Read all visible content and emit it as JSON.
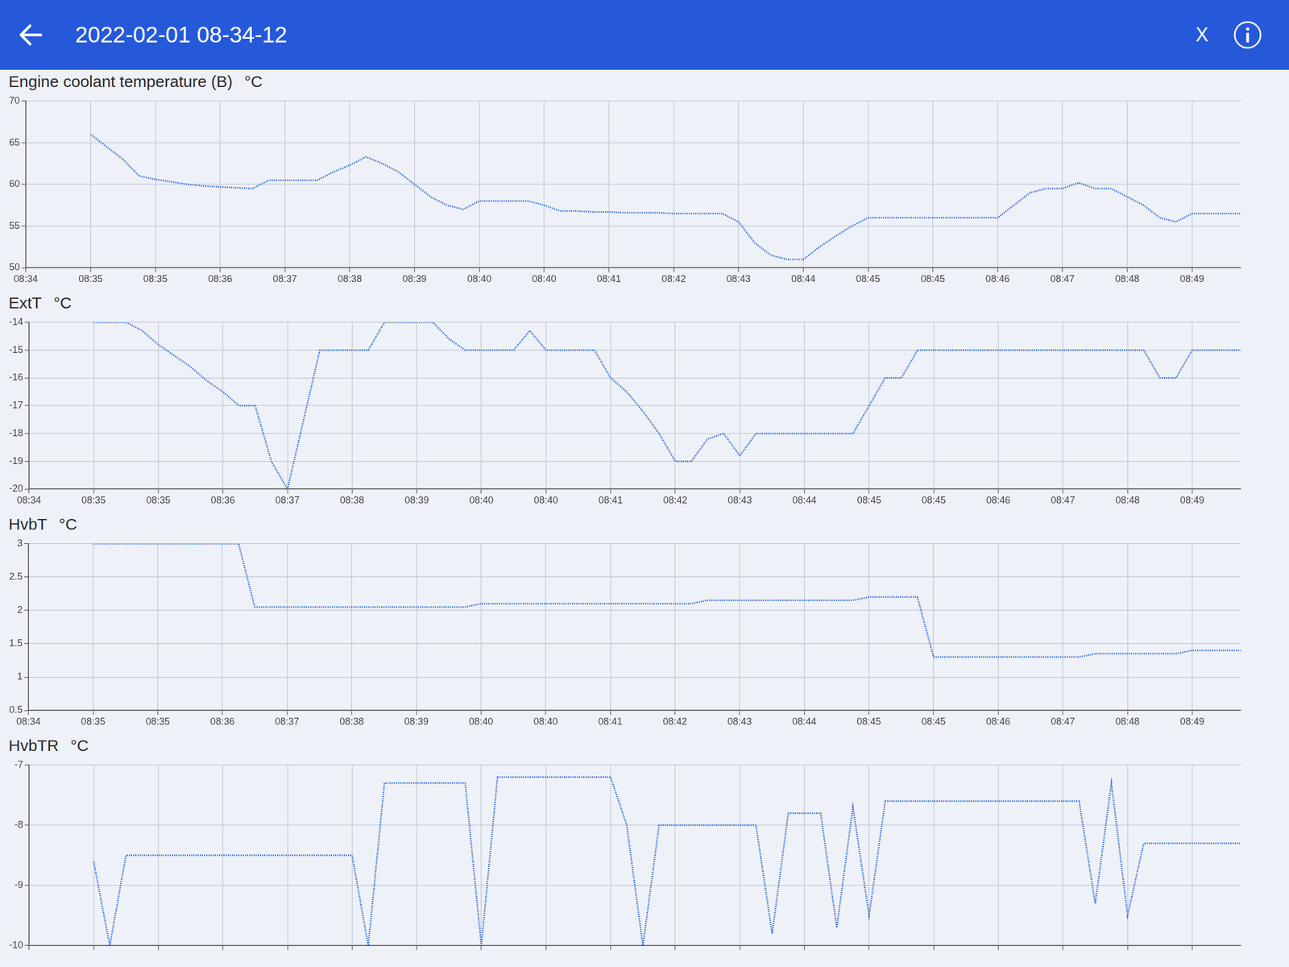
{
  "header": {
    "title": "2022-02-01 08-34-12",
    "close": "X"
  },
  "chart_data": [
    {
      "type": "line",
      "title": "Engine coolant temperature (B)",
      "y_label": "°C",
      "categories": [
        "08:34",
        null,
        null,
        null,
        "08:35",
        null,
        null,
        null,
        "08:35",
        null,
        null,
        null,
        "08:36",
        null,
        null,
        null,
        "08:37",
        null,
        null,
        null,
        "08:38",
        null,
        null,
        null,
        "08:39",
        null,
        null,
        null,
        "08:40",
        null,
        null,
        null,
        "08:40",
        null,
        null,
        null,
        "08:41",
        null,
        null,
        null,
        "08:42",
        null,
        null,
        null,
        "08:43",
        null,
        null,
        null,
        "08:44",
        null,
        null,
        null,
        "08:45",
        null,
        null,
        null,
        "08:45",
        null,
        null,
        null,
        "08:46",
        null,
        null,
        null,
        "08:47",
        null,
        null,
        null,
        "08:48",
        null,
        null,
        null,
        "08:49",
        null,
        null,
        null
      ],
      "series": [
        {
          "color": "#3b6fd6",
          "line_style": "dotted",
          "marker": "none",
          "values": [
            null,
            null,
            null,
            null,
            66,
            64.5,
            63,
            61,
            60.6,
            60.3,
            60,
            59.8,
            59.7,
            59.6,
            59.5,
            60.5,
            60.5,
            60.5,
            60.5,
            61.5,
            62.3,
            63.3,
            62.5,
            61.5,
            60,
            58.5,
            57.5,
            57,
            58,
            58,
            58,
            58,
            57.5,
            56.8,
            56.8,
            56.7,
            56.7,
            56.6,
            56.6,
            56.6,
            56.5,
            56.5,
            56.5,
            56.5,
            55.5,
            53,
            51.5,
            51,
            51,
            52.5,
            53.8,
            55,
            56,
            56,
            56,
            56,
            56,
            56,
            56,
            56,
            56,
            57.5,
            59,
            59.5,
            59.5,
            60.2,
            59.5,
            59.5,
            58.5,
            57.5,
            56,
            55.5,
            56.5,
            56.5,
            56.5,
            56.5
          ]
        }
      ],
      "ylim": [
        50,
        70
      ],
      "yticks": [
        50,
        55,
        60,
        65,
        70
      ],
      "grid": true
    },
    {
      "type": "line",
      "title": "ExtT",
      "y_label": "°C",
      "categories": [
        "08:34",
        null,
        null,
        null,
        "08:35",
        null,
        null,
        null,
        "08:35",
        null,
        null,
        null,
        "08:36",
        null,
        null,
        null,
        "08:37",
        null,
        null,
        null,
        "08:38",
        null,
        null,
        null,
        "08:39",
        null,
        null,
        null,
        "08:40",
        null,
        null,
        null,
        "08:40",
        null,
        null,
        null,
        "08:41",
        null,
        null,
        null,
        "08:42",
        null,
        null,
        null,
        "08:43",
        null,
        null,
        null,
        "08:44",
        null,
        null,
        null,
        "08:45",
        null,
        null,
        null,
        "08:45",
        null,
        null,
        null,
        "08:46",
        null,
        null,
        null,
        "08:47",
        null,
        null,
        null,
        "08:48",
        null,
        null,
        null,
        "08:49",
        null,
        null,
        null
      ],
      "series": [
        {
          "color": "#3b6fd6",
          "line_style": "dotted",
          "marker": "none",
          "values": [
            null,
            null,
            null,
            null,
            -14,
            -14,
            -14,
            -14.3,
            -14.8,
            -15.2,
            -15.6,
            -16.1,
            -16.5,
            -17,
            -17,
            -19,
            -20,
            -17.5,
            -15,
            -15,
            -15,
            -15,
            -14,
            -14,
            -14,
            -14,
            -14.6,
            -15,
            -15,
            -15,
            -15,
            -14.3,
            -15,
            -15,
            -15,
            -15,
            -16,
            -16.5,
            -17.2,
            -18,
            -19,
            -19,
            -18.2,
            -18,
            -18.8,
            -18,
            -18,
            -18,
            -18,
            -18,
            -18,
            -18,
            -17,
            -16,
            -16,
            -15,
            -15,
            -15,
            -15,
            -15,
            -15,
            -15,
            -15,
            -15,
            -15,
            -15,
            -15,
            -15,
            -15,
            -15,
            -16,
            -16,
            -15,
            -15,
            -15,
            -15
          ]
        }
      ],
      "ylim": [
        -20,
        -14
      ],
      "yticks": [
        -20,
        -19,
        -18,
        -17,
        -16,
        -15,
        -14
      ],
      "grid": true
    },
    {
      "type": "line",
      "title": "HvbT",
      "y_label": "°C",
      "categories": [
        "08:34",
        null,
        null,
        null,
        "08:35",
        null,
        null,
        null,
        "08:35",
        null,
        null,
        null,
        "08:36",
        null,
        null,
        null,
        "08:37",
        null,
        null,
        null,
        "08:38",
        null,
        null,
        null,
        "08:39",
        null,
        null,
        null,
        "08:40",
        null,
        null,
        null,
        "08:40",
        null,
        null,
        null,
        "08:41",
        null,
        null,
        null,
        "08:42",
        null,
        null,
        null,
        "08:43",
        null,
        null,
        null,
        "08:44",
        null,
        null,
        null,
        "08:45",
        null,
        null,
        null,
        "08:45",
        null,
        null,
        null,
        "08:46",
        null,
        null,
        null,
        "08:47",
        null,
        null,
        null,
        "08:48",
        null,
        null,
        null,
        "08:49",
        null,
        null,
        null
      ],
      "series": [
        {
          "color": "#3b6fd6",
          "line_style": "dotted",
          "marker": "none",
          "values": [
            null,
            null,
            null,
            null,
            3,
            3,
            3,
            3,
            3,
            3,
            3,
            3,
            3,
            3,
            2.05,
            2.05,
            2.05,
            2.05,
            2.05,
            2.05,
            2.05,
            2.05,
            2.05,
            2.05,
            2.05,
            2.05,
            2.05,
            2.05,
            2.1,
            2.1,
            2.1,
            2.1,
            2.1,
            2.1,
            2.1,
            2.1,
            2.1,
            2.1,
            2.1,
            2.1,
            2.1,
            2.1,
            2.15,
            2.15,
            2.15,
            2.15,
            2.15,
            2.15,
            2.15,
            2.15,
            2.15,
            2.15,
            2.2,
            2.2,
            2.2,
            2.2,
            1.3,
            1.3,
            1.3,
            1.3,
            1.3,
            1.3,
            1.3,
            1.3,
            1.3,
            1.3,
            1.35,
            1.35,
            1.35,
            1.35,
            1.35,
            1.35,
            1.4,
            1.4,
            1.4,
            1.4
          ]
        }
      ],
      "ylim": [
        0.5,
        3
      ],
      "yticks": [
        0.5,
        1,
        1.5,
        2,
        2.5,
        3
      ],
      "grid": true
    },
    {
      "type": "line",
      "title": "HvbTR",
      "y_label": "°C",
      "categories": [
        "08:34",
        null,
        null,
        null,
        "08:35",
        null,
        null,
        null,
        "08:35",
        null,
        null,
        null,
        "08:36",
        null,
        null,
        null,
        "08:37",
        null,
        null,
        null,
        "08:38",
        null,
        null,
        null,
        "08:39",
        null,
        null,
        null,
        "08:40",
        null,
        null,
        null,
        "08:40",
        null,
        null,
        null,
        "08:41",
        null,
        null,
        null,
        "08:42",
        null,
        null,
        null,
        "08:43",
        null,
        null,
        null,
        "08:44",
        null,
        null,
        null,
        "08:45",
        null,
        null,
        null,
        "08:45",
        null,
        null,
        null,
        "08:46",
        null,
        null,
        null,
        "08:47",
        null,
        null,
        null,
        "08:48",
        null,
        null,
        null,
        "08:49",
        null,
        null,
        null
      ],
      "series": [
        {
          "color": "#3b6fd6",
          "line_style": "dotted",
          "marker": "none",
          "values": [
            null,
            null,
            null,
            null,
            -8.6,
            -10,
            -8.5,
            -8.5,
            -8.5,
            -8.5,
            -8.5,
            -8.5,
            -8.5,
            -8.5,
            -8.5,
            -8.5,
            -8.5,
            -8.5,
            -8.5,
            -8.5,
            -8.5,
            -10,
            -7.3,
            -7.3,
            -7.3,
            -7.3,
            -7.3,
            -7.3,
            -10,
            -7.2,
            -7.2,
            -7.2,
            -7.2,
            -7.2,
            -7.2,
            -7.2,
            -7.2,
            -8,
            -10,
            -8,
            -8,
            -8,
            -8,
            -8,
            -8,
            -8,
            -9.8,
            -7.8,
            -7.8,
            -7.8,
            -9.7,
            -7.7,
            -9.5,
            -7.6,
            -7.6,
            -7.6,
            -7.6,
            -7.6,
            -7.6,
            -7.6,
            -7.6,
            -7.6,
            -7.6,
            -7.6,
            -7.6,
            -7.6,
            -9.3,
            -7.3,
            -9.5,
            -8.3,
            -8.3,
            -8.3,
            -8.3,
            -8.3,
            -8.3,
            -8.3
          ]
        }
      ],
      "ylim": [
        -10,
        -7
      ],
      "yticks": [
        -10,
        -9,
        -8,
        -7
      ],
      "grid": true,
      "tick_labels": "y"
    }
  ]
}
